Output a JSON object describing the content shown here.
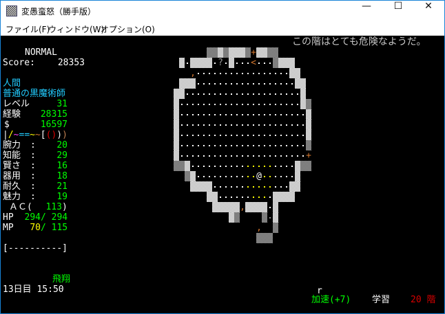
{
  "window": {
    "title": "変愚蛮怒（勝手版）",
    "controls": {
      "minimize": "—",
      "maximize": "☐",
      "close": "✕"
    }
  },
  "menu": [
    "ファイル(F)",
    "ウィンドウ(W)",
    "オプション(O)"
  ],
  "message": "この階はとても危険なようだ。",
  "status": {
    "mode": "NORMAL",
    "score_label": "Score:",
    "score": "28353",
    "race": "人間",
    "title": "普通の黒魔術師",
    "level_label": "レベル",
    "level": "31",
    "exp_label": "経験",
    "exp": "28315",
    "gold_label": "$",
    "gold": "16597",
    "equipment": [
      {
        "ch": "|",
        "color": "#ffffff"
      },
      {
        "ch": "/",
        "color": "#ffff00"
      },
      {
        "ch": "~",
        "color": "#ff44ff"
      },
      {
        "ch": "=",
        "color": "#22ccff"
      },
      {
        "ch": "=",
        "color": "#22ccff"
      },
      {
        "ch": "~",
        "color": "#ffff00"
      },
      {
        "ch": "~",
        "color": "#d0742c"
      },
      {
        "ch": "[",
        "color": "#ffffff"
      },
      {
        "ch": "(",
        "color": "#d80000"
      },
      {
        "ch": ")",
        "color": "#d80000"
      },
      {
        "ch": ")",
        "color": "#ffffff"
      },
      {
        "ch": ")",
        "color": "#c08050"
      }
    ],
    "stats": [
      {
        "label": "腕力",
        "value": "20"
      },
      {
        "label": "知能",
        "value": "29"
      },
      {
        "label": "賢さ",
        "value": "16"
      },
      {
        "label": "器用",
        "value": "18"
      },
      {
        "label": "耐久",
        "value": "21"
      },
      {
        "label": "魅力",
        "value": "19"
      }
    ],
    "ac_label": "ＡＣ(",
    "ac": "113",
    "ac_close": ")",
    "hp_label": "HP",
    "hp": "294",
    "hp_max": "/ 294",
    "mp_label": "MP",
    "mp": "70",
    "mp_max": "/ 115",
    "bar": "[----------]",
    "levitation": "飛翔",
    "time": "13日目 15:50"
  },
  "bottom": {
    "r": "r",
    "speed": "加速(+7)",
    "study": "学習",
    "depth": "20 階"
  },
  "map": {
    "rows": [
      "      %%#%###%+##%%       ",
      " #.####.?.#...<...%###    ",
      "   ,.................##   ",
      " ###..................##  ",
      "##.....................#  ",
      "#......................#% ",
      "#.......................# ",
      "#.......................# ",
      "#.......................# ",
      "#.......................% ",
      "#.......................+ ",
      "%%#..........yyyyy....#%% ",
      "  %#.........yy@yy....#   ",
      "   ####......yyyyy...##   ",
      "      ##......yyy.####    ",
      "       #####,####.#       ",
      "          #%    %g#       ",
      "               ,  %       ",
      "               %%%        "
    ],
    "legend": {
      "#": "granite-wall",
      "%": "dark-wall",
      ".": "floor",
      "y": "lit-floor",
      "g": "dim-floor",
      "+": "door",
      "<": "up-staircase",
      "?": "scroll",
      ",": "item",
      "@": "player"
    },
    "colors": {
      "floor": "#ffffff",
      "lit": "#ffff00",
      "dim": "#8a8a8a",
      "door": "#d0742c",
      "scroll": "#9a9a9a",
      "item": "#d0742c",
      "player": "#ffffff"
    }
  }
}
